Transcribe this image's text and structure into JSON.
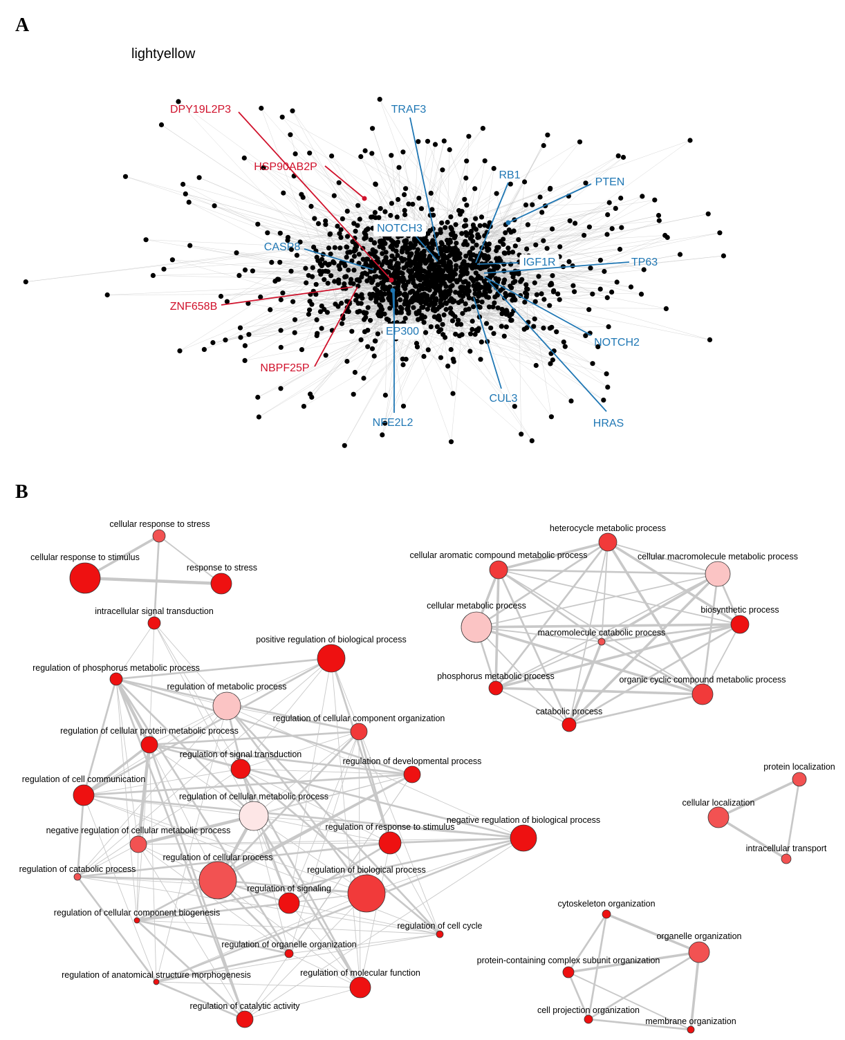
{
  "panel_a": {
    "letter": "A",
    "title": "lightyellow",
    "red_labels": [
      "DPY19L2P3",
      "HSP90AB2P",
      "ZNF658B",
      "NBPF25P"
    ],
    "blue_labels": [
      "TRAF3",
      "RB1",
      "PTEN",
      "NOTCH3",
      "CASP8",
      "IGF1R",
      "TP63",
      "EP300",
      "NOTCH2",
      "CUL3",
      "HRAS",
      "NFE2L2"
    ]
  },
  "panel_b": {
    "letter": "B",
    "nodes": [
      "cellular response to stress",
      "cellular response to stimulus",
      "response to stress",
      "intracellular signal transduction",
      "positive regulation of biological process",
      "regulation of phosphorus metabolic process",
      "regulation of metabolic process",
      "regulation of cellular component organization",
      "regulation of cellular protein metabolic process",
      "regulation of signal transduction",
      "regulation of developmental process",
      "regulation of cell communication",
      "regulation of cellular metabolic process",
      "negative regulation of biological process",
      "regulation of response to stimulus",
      "negative regulation of cellular metabolic process",
      "regulation of catabolic process",
      "regulation of cellular process",
      "regulation of biological process",
      "regulation of signaling",
      "regulation of cellular component biogenesis",
      "regulation of cell cycle",
      "regulation of organelle organization",
      "regulation of anatomical structure morphogenesis",
      "regulation of molecular function",
      "regulation of catalytic activity",
      "heterocycle metabolic process",
      "cellular aromatic compound metabolic process",
      "cellular macromolecule metabolic process",
      "cellular metabolic process",
      "biosynthetic process",
      "macromolecule catabolic process",
      "phosphorus metabolic process",
      "organic cyclic compound metabolic process",
      "catabolic process",
      "protein localization",
      "cellular localization",
      "intracellular transport",
      "cytoskeleton organization",
      "organelle organization",
      "protein-containing complex subunit organization",
      "cell projection organization",
      "membrane organization"
    ]
  }
}
